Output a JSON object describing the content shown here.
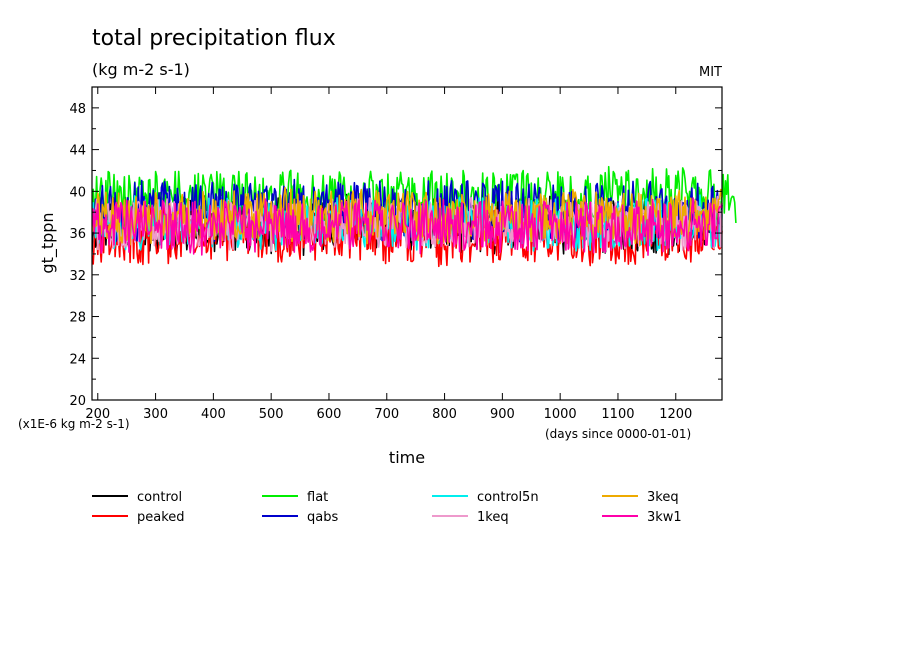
{
  "chart_data": {
    "type": "line",
    "title": "total precipitation flux",
    "subtitle": "(kg m-2 s-1)",
    "source_label": "MIT",
    "xlabel": "time",
    "ylabel": "gt_tppn",
    "x_unit_note": "(days since 0000-01-01)",
    "y_unit_note": "(x1E-6 kg m-2 s-1)",
    "xlim": [
      190,
      1280
    ],
    "ylim": [
      20,
      50
    ],
    "x_ticks": [
      200,
      300,
      400,
      500,
      600,
      700,
      800,
      900,
      1000,
      1100,
      1200
    ],
    "y_ticks": [
      20,
      24,
      28,
      32,
      36,
      40,
      44,
      48
    ],
    "grid": false,
    "legend_position": "bottom",
    "series": [
      {
        "name": "control",
        "color": "#000000",
        "mean": 36.8,
        "amplitude": 2.6,
        "x_end": 1280
      },
      {
        "name": "peaked",
        "color": "#ff0000",
        "mean": 35.9,
        "amplitude": 2.8,
        "x_end": 1280
      },
      {
        "name": "flat",
        "color": "#00ee00",
        "mean": 39.6,
        "amplitude": 2.4,
        "x_end": 1305
      },
      {
        "name": "qabs",
        "color": "#0000cc",
        "mean": 38.2,
        "amplitude": 2.7,
        "x_end": 1280
      },
      {
        "name": "control5n",
        "color": "#00eeee",
        "mean": 36.9,
        "amplitude": 2.4,
        "x_end": 1280
      },
      {
        "name": "1keq",
        "color": "#ee99cc",
        "mean": 36.9,
        "amplitude": 2.3,
        "x_end": 1280
      },
      {
        "name": "3keq",
        "color": "#eeaa00",
        "mean": 37.6,
        "amplitude": 2.4,
        "x_end": 1280
      },
      {
        "name": "3kw1",
        "color": "#ff00aa",
        "mean": 36.6,
        "amplitude": 2.4,
        "x_end": 1280
      }
    ]
  }
}
